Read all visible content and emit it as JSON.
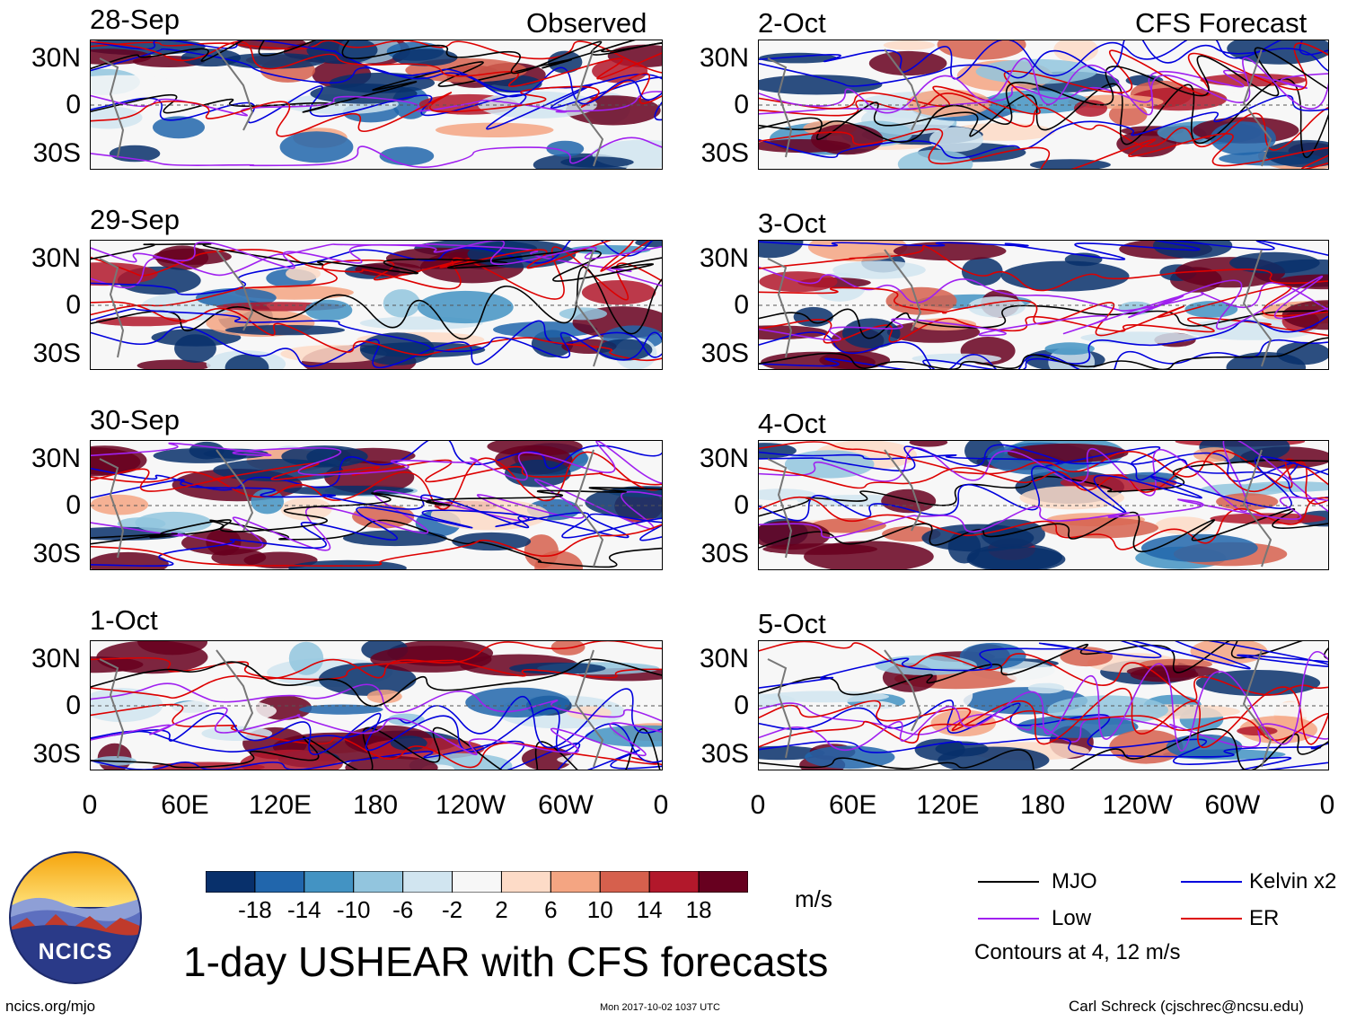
{
  "headers": {
    "observed": "Observed",
    "forecast": "CFS Forecast"
  },
  "panels": {
    "left": [
      {
        "date": "28-Sep"
      },
      {
        "date": "29-Sep"
      },
      {
        "date": "30-Sep"
      },
      {
        "date": "1-Oct"
      }
    ],
    "right": [
      {
        "date": "2-Oct"
      },
      {
        "date": "3-Oct"
      },
      {
        "date": "4-Oct"
      },
      {
        "date": "5-Oct"
      }
    ]
  },
  "lat_labels": [
    "30N",
    "0",
    "30S"
  ],
  "lon_labels": [
    "0",
    "60E",
    "120E",
    "180",
    "120W",
    "60W",
    "0"
  ],
  "colorbar": {
    "labels": [
      "-18",
      "-14",
      "-10",
      "-6",
      "-2",
      "2",
      "6",
      "10",
      "14",
      "18"
    ],
    "colors": [
      "#08306b",
      "#2166ac",
      "#4393c3",
      "#92c5de",
      "#d1e5f0",
      "#f7f7f7",
      "#fddbc7",
      "#f4a582",
      "#d6604d",
      "#b2182b",
      "#67001f"
    ],
    "units": "m/s"
  },
  "legend": {
    "items": [
      {
        "label": "MJO",
        "color": "#000000"
      },
      {
        "label": "Kelvin x2",
        "color": "#0000dd"
      },
      {
        "label": "Low",
        "color": "#a020f0"
      },
      {
        "label": "ER",
        "color": "#dd0000"
      }
    ],
    "note": "Contours at 4, 12 m/s"
  },
  "logo": {
    "text": "NCICS"
  },
  "title": "1-day USHEAR with CFS forecasts",
  "footer": {
    "url": "ncics.org/mjo",
    "timestamp": "Mon 2017-10-02 1037 UTC",
    "credit": "Carl Schreck (cjschrec@ncsu.edu)"
  }
}
